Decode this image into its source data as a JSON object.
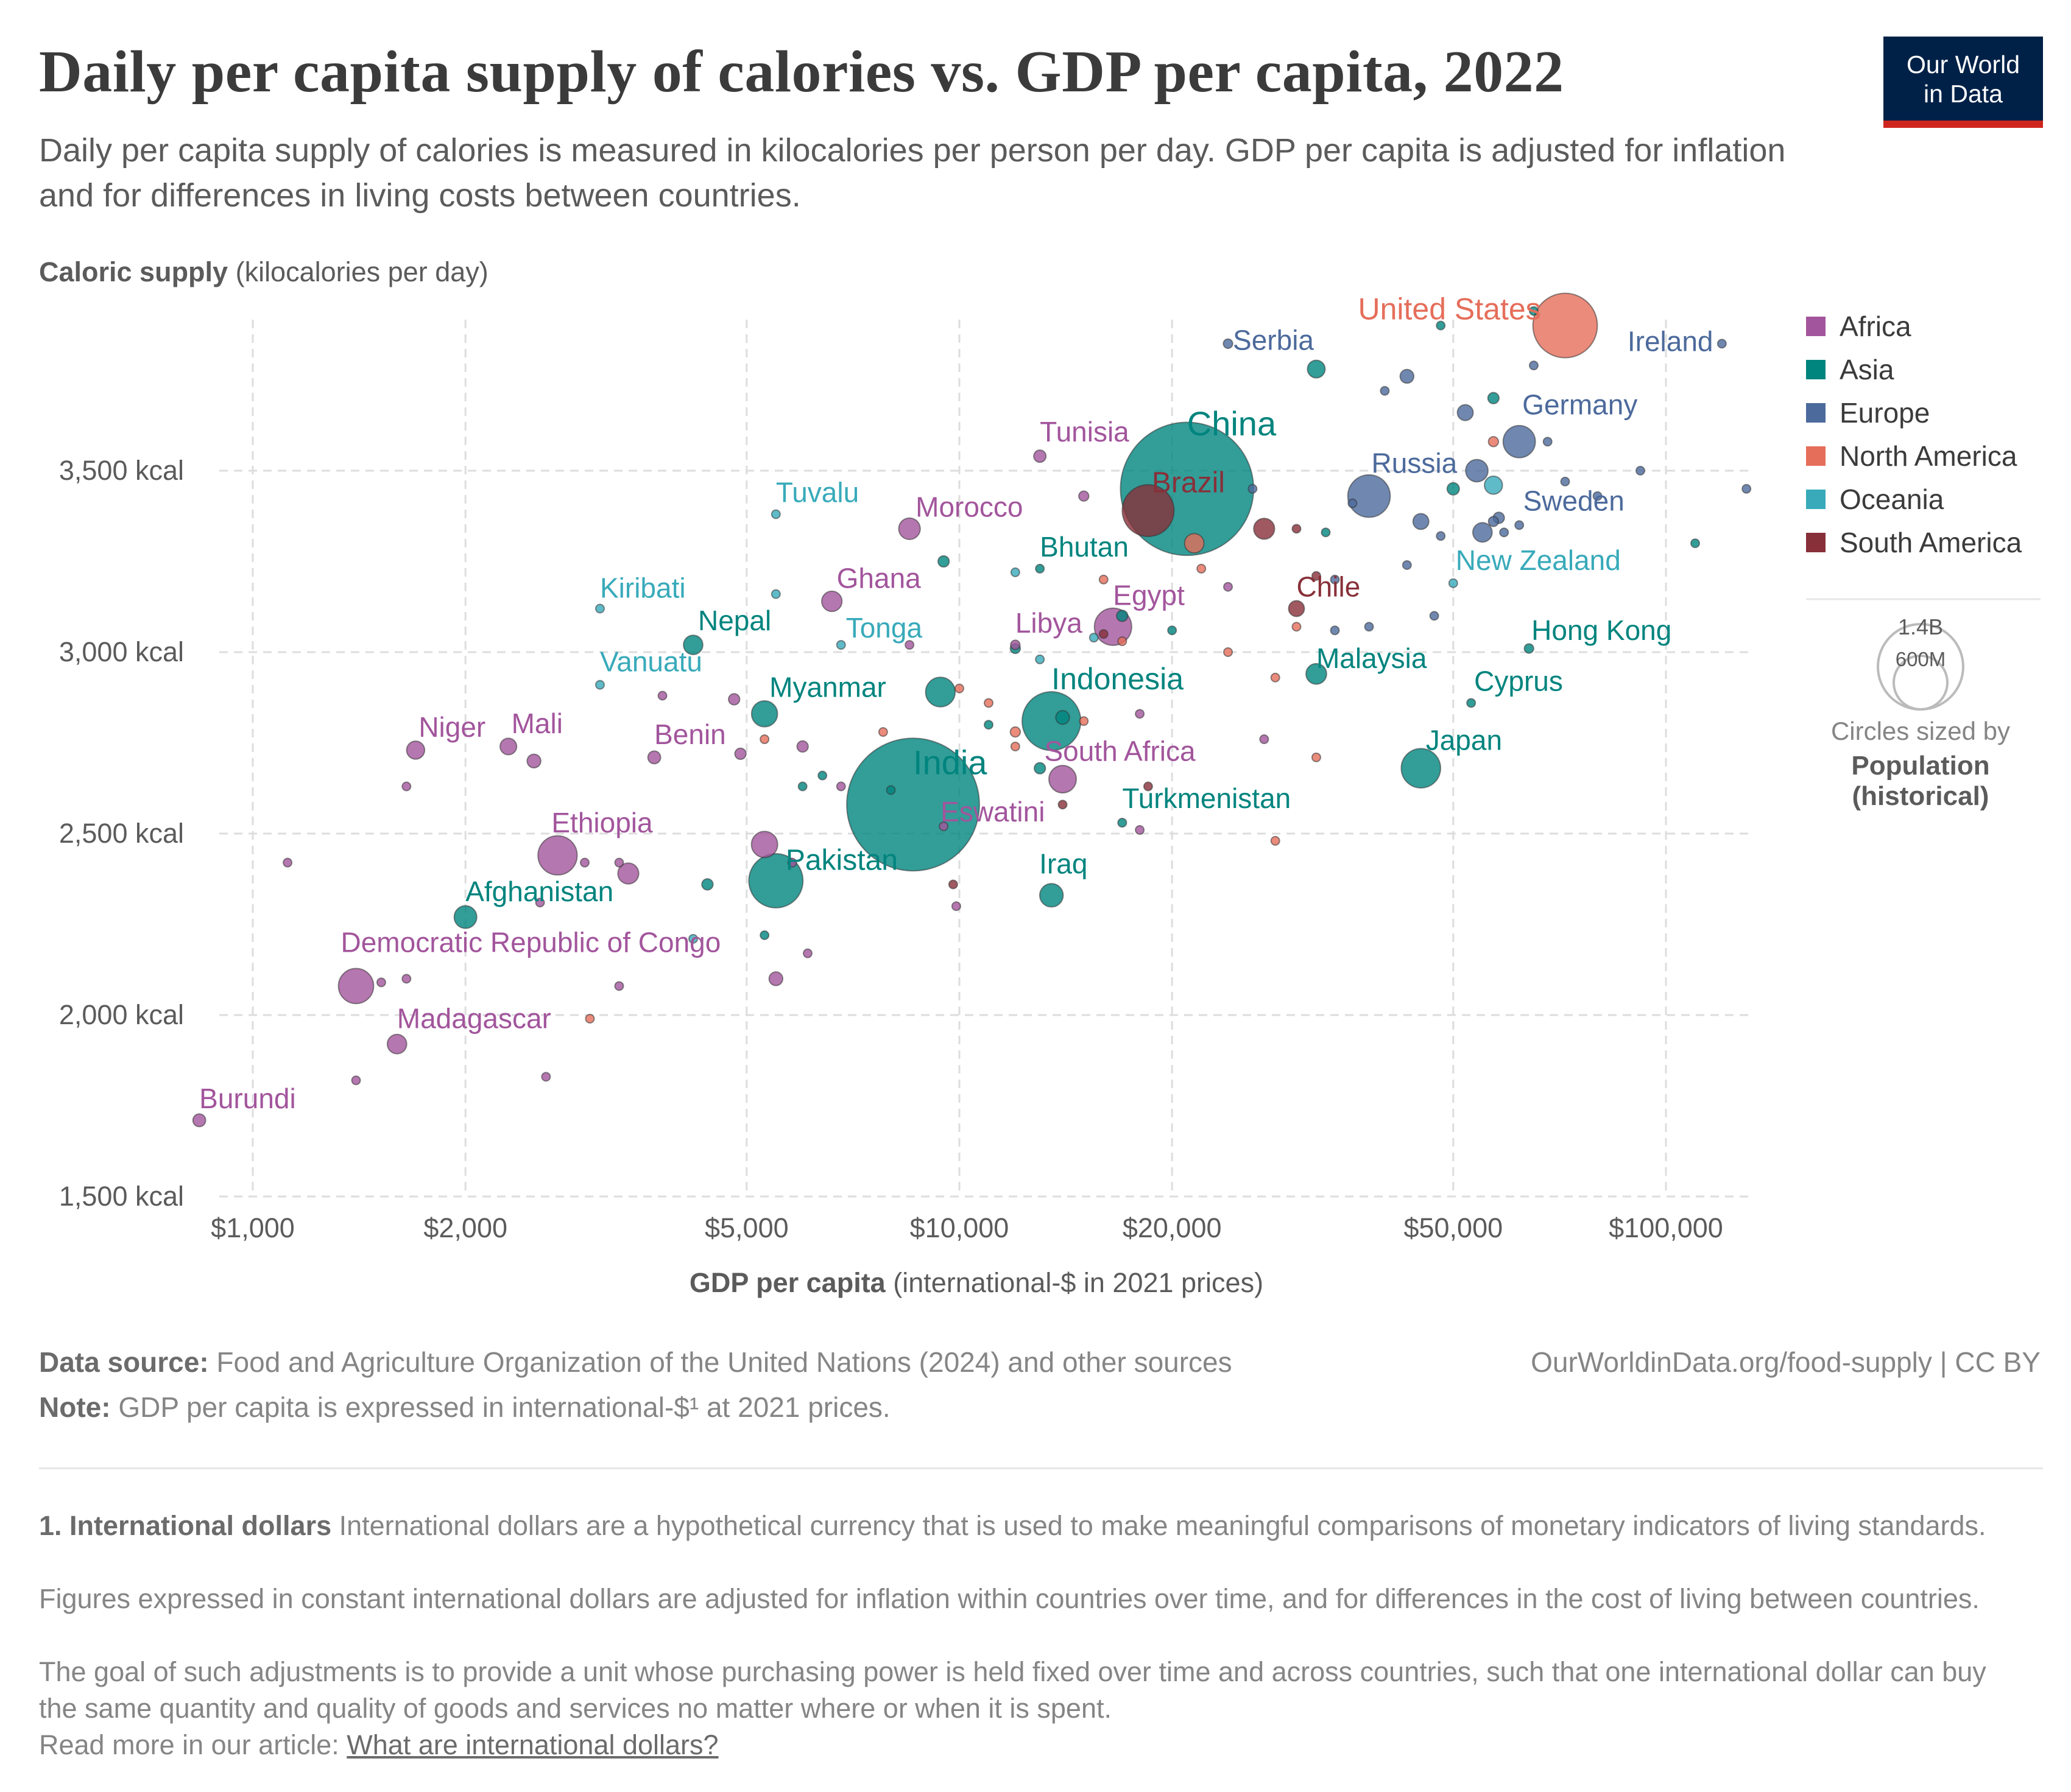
{
  "header": {
    "title": "Daily per capita supply of calories vs. GDP per capita, 2022",
    "subtitle": "Daily per capita supply of calories is measured in kilocalories per person per day. GDP per capita is adjusted for inflation and for differences in living costs between countries.",
    "logo_line1": "Our World",
    "logo_line2": "in Data"
  },
  "colors": {
    "Africa": "#a2559c",
    "Asia": "#00847e",
    "Europe": "#4c6a9c",
    "North America": "#e56e5a",
    "Oceania": "#38aaba",
    "South America": "#883039"
  },
  "chart_data": {
    "type": "scatter",
    "x_scale": "log",
    "xlim": [
      1000,
      130000
    ],
    "ylim": [
      1500,
      3900
    ],
    "y_label_bold": "Caloric supply",
    "y_label_rest": " (kilocalories per day)",
    "x_label_bold": "GDP per capita",
    "x_label_rest": " (international-$ in 2021 prices)",
    "y_ticks": [
      {
        "value": 1500,
        "label": "1,500 kcal"
      },
      {
        "value": 2000,
        "label": "2,000 kcal"
      },
      {
        "value": 2500,
        "label": "2,500 kcal"
      },
      {
        "value": 3000,
        "label": "3,000 kcal"
      },
      {
        "value": 3500,
        "label": "3,500 kcal"
      }
    ],
    "x_ticks": [
      {
        "value": 1000,
        "label": "$1,000"
      },
      {
        "value": 2000,
        "label": "$2,000"
      },
      {
        "value": 5000,
        "label": "$5,000"
      },
      {
        "value": 10000,
        "label": "$10,000"
      },
      {
        "value": 20000,
        "label": "$20,000"
      },
      {
        "value": 50000,
        "label": "$50,000"
      },
      {
        "value": 100000,
        "label": "$100,000"
      }
    ],
    "legend": {
      "entries": [
        "Africa",
        "Asia",
        "Europe",
        "North America",
        "Oceania",
        "South America"
      ],
      "size_values": [
        "1.4B",
        "600M"
      ],
      "size_caption1": "Circles sized by",
      "size_caption2": "Population",
      "size_caption3": "(historical)"
    },
    "labeled_points": [
      {
        "name": "China",
        "continent": "Asia",
        "gdp": 21000,
        "kcal": 3450,
        "pop": 1420
      },
      {
        "name": "India",
        "continent": "Asia",
        "gdp": 8600,
        "kcal": 2580,
        "pop": 1410
      },
      {
        "name": "United States",
        "continent": "North America",
        "gdp": 72000,
        "kcal": 3900,
        "pop": 333
      },
      {
        "name": "Indonesia",
        "continent": "Asia",
        "gdp": 13500,
        "kcal": 2810,
        "pop": 276
      },
      {
        "name": "Pakistan",
        "continent": "Asia",
        "gdp": 5500,
        "kcal": 2370,
        "pop": 235
      },
      {
        "name": "Brazil",
        "continent": "South America",
        "gdp": 18500,
        "kcal": 3390,
        "pop": 215
      },
      {
        "name": "Russia",
        "continent": "Europe",
        "gdp": 38000,
        "kcal": 3430,
        "pop": 144
      },
      {
        "name": "Japan",
        "continent": "Asia",
        "gdp": 45000,
        "kcal": 2680,
        "pop": 124
      },
      {
        "name": "Ethiopia",
        "continent": "Africa",
        "gdp": 2700,
        "kcal": 2440,
        "pop": 123
      },
      {
        "name": "Egypt",
        "continent": "Africa",
        "gdp": 16500,
        "kcal": 3070,
        "pop": 111
      },
      {
        "name": "Democratic Republic of Congo",
        "continent": "Africa",
        "gdp": 1400,
        "kcal": 2080,
        "pop": 99
      },
      {
        "name": "Germany",
        "continent": "Europe",
        "gdp": 62000,
        "kcal": 3580,
        "pop": 83
      },
      {
        "name": "South Africa",
        "continent": "Africa",
        "gdp": 14000,
        "kcal": 2650,
        "pop": 60
      },
      {
        "name": "Myanmar",
        "continent": "Asia",
        "gdp": 5300,
        "kcal": 2830,
        "pop": 54
      },
      {
        "name": "Morocco",
        "continent": "Africa",
        "gdp": 8500,
        "kcal": 3340,
        "pop": 37
      },
      {
        "name": "Iraq",
        "continent": "Asia",
        "gdp": 13500,
        "kcal": 2330,
        "pop": 44
      },
      {
        "name": "Afghanistan",
        "continent": "Asia",
        "gdp": 2000,
        "kcal": 2270,
        "pop": 41
      },
      {
        "name": "Ghana",
        "continent": "Africa",
        "gdp": 6600,
        "kcal": 3140,
        "pop": 33
      },
      {
        "name": "Nepal",
        "continent": "Asia",
        "gdp": 4200,
        "kcal": 3020,
        "pop": 30
      },
      {
        "name": "Madagascar",
        "continent": "Africa",
        "gdp": 1600,
        "kcal": 1920,
        "pop": 30
      },
      {
        "name": "Malaysia",
        "continent": "Asia",
        "gdp": 32000,
        "kcal": 2940,
        "pop": 34
      },
      {
        "name": "Niger",
        "continent": "Africa",
        "gdp": 1700,
        "kcal": 2730,
        "pop": 26
      },
      {
        "name": "Mali",
        "continent": "Africa",
        "gdp": 2300,
        "kcal": 2740,
        "pop": 22
      },
      {
        "name": "Chile",
        "continent": "South America",
        "gdp": 30000,
        "kcal": 3120,
        "pop": 20
      },
      {
        "name": "Benin",
        "continent": "Africa",
        "gdp": 3700,
        "kcal": 2710,
        "pop": 13
      },
      {
        "name": "Tunisia",
        "continent": "Africa",
        "gdp": 13000,
        "kcal": 3540,
        "pop": 12
      },
      {
        "name": "Burundi",
        "continent": "Africa",
        "gdp": 840,
        "kcal": 1710,
        "pop": 13
      },
      {
        "name": "Sweden",
        "continent": "Europe",
        "gdp": 58000,
        "kcal": 3370,
        "pop": 10
      },
      {
        "name": "Serbia",
        "continent": "Europe",
        "gdp": 24000,
        "kcal": 3850,
        "pop": 7
      },
      {
        "name": "Libya",
        "continent": "Africa",
        "gdp": 12000,
        "kcal": 3020,
        "pop": 7
      },
      {
        "name": "Hong Kong",
        "continent": "Asia",
        "gdp": 64000,
        "kcal": 3010,
        "pop": 7
      },
      {
        "name": "Turkmenistan",
        "continent": "Asia",
        "gdp": 17000,
        "kcal": 2530,
        "pop": 6
      },
      {
        "name": "Ireland",
        "continent": "Europe",
        "gdp": 120000,
        "kcal": 3850,
        "pop": 5
      },
      {
        "name": "New Zealand",
        "continent": "Oceania",
        "gdp": 50000,
        "kcal": 3190,
        "pop": 5
      },
      {
        "name": "Bhutan",
        "continent": "Asia",
        "gdp": 13000,
        "kcal": 3230,
        "pop": 0.8
      },
      {
        "name": "Eswatini",
        "continent": "Africa",
        "gdp": 9500,
        "kcal": 2520,
        "pop": 1.2
      },
      {
        "name": "Cyprus",
        "continent": "Asia",
        "gdp": 53000,
        "kcal": 2860,
        "pop": 1.2
      },
      {
        "name": "Tonga",
        "continent": "Oceania",
        "gdp": 6800,
        "kcal": 3020,
        "pop": 0.1
      },
      {
        "name": "Vanuatu",
        "continent": "Oceania",
        "gdp": 3100,
        "kcal": 2910,
        "pop": 0.3
      },
      {
        "name": "Kiribati",
        "continent": "Oceania",
        "gdp": 3100,
        "kcal": 3120,
        "pop": 0.13
      },
      {
        "name": "Tuvalu",
        "continent": "Oceania",
        "gdp": 5500,
        "kcal": 3380,
        "pop": 0.01
      }
    ],
    "other_points": [
      [
        "Africa",
        1120,
        2420,
        5
      ],
      [
        "Africa",
        1650,
        2630,
        5
      ],
      [
        "Africa",
        1520,
        2090,
        5
      ],
      [
        "Africa",
        1400,
        1820,
        5
      ],
      [
        "Africa",
        1650,
        2100,
        5
      ],
      [
        "Africa",
        2500,
        2700,
        15
      ],
      [
        "Africa",
        2550,
        2310,
        5
      ],
      [
        "Africa",
        2600,
        1830,
        5
      ],
      [
        "Africa",
        2950,
        2420,
        5
      ],
      [
        "Africa",
        3300,
        2420,
        5
      ],
      [
        "Africa",
        3300,
        2080,
        5
      ],
      [
        "Africa",
        3400,
        2390,
        35
      ],
      [
        "Africa",
        3800,
        2880,
        5
      ],
      [
        "Africa",
        4800,
        2870,
        10
      ],
      [
        "Africa",
        4900,
        2720,
        10
      ],
      [
        "Africa",
        5300,
        2470,
        55
      ],
      [
        "Africa",
        5500,
        2100,
        15
      ],
      [
        "Africa",
        5800,
        2420,
        5
      ],
      [
        "Africa",
        6000,
        2740,
        10
      ],
      [
        "Africa",
        6100,
        2170,
        5
      ],
      [
        "Africa",
        6800,
        2630,
        5
      ],
      [
        "Africa",
        8500,
        3020,
        5
      ],
      [
        "Africa",
        9900,
        2300,
        5
      ],
      [
        "Africa",
        15000,
        3430,
        8
      ],
      [
        "Africa",
        18000,
        2830,
        5
      ],
      [
        "Africa",
        18000,
        2510,
        5
      ],
      [
        "Africa",
        24000,
        3180,
        5
      ],
      [
        "Africa",
        27000,
        2760,
        5
      ],
      [
        "Asia",
        4400,
        2360,
        10
      ],
      [
        "Asia",
        5300,
        2220,
        5
      ],
      [
        "Asia",
        6000,
        2630,
        5
      ],
      [
        "Asia",
        6400,
        2660,
        5
      ],
      [
        "Asia",
        8000,
        2620,
        5
      ],
      [
        "Asia",
        9400,
        2890,
        70
      ],
      [
        "Asia",
        9500,
        3250,
        10
      ],
      [
        "Asia",
        12000,
        3010,
        8
      ],
      [
        "Asia",
        13000,
        2680,
        10
      ],
      [
        "Asia",
        14000,
        2820,
        15
      ],
      [
        "Asia",
        17000,
        3100,
        10
      ],
      [
        "Asia",
        20000,
        3060,
        5
      ],
      [
        "Asia",
        32000,
        3780,
        25
      ],
      [
        "Asia",
        33000,
        3330,
        5
      ],
      [
        "Asia",
        48000,
        3900,
        5
      ],
      [
        "Asia",
        50000,
        3450,
        12
      ],
      [
        "Asia",
        57000,
        3700,
        10
      ],
      [
        "Asia",
        65000,
        3940,
        5
      ],
      [
        "Asia",
        110000,
        3300,
        5
      ],
      [
        "Asia",
        11000,
        2800,
        5
      ],
      [
        "Europe",
        26000,
        3450,
        5
      ],
      [
        "Europe",
        34000,
        3200,
        5
      ],
      [
        "Europe",
        36000,
        3410,
        5
      ],
      [
        "Europe",
        38000,
        3070,
        5
      ],
      [
        "Europe",
        40000,
        3720,
        5
      ],
      [
        "Europe",
        43000,
        3760,
        15
      ],
      [
        "Europe",
        45000,
        3360,
        20
      ],
      [
        "Europe",
        47000,
        3100,
        5
      ],
      [
        "Europe",
        48000,
        3320,
        5
      ],
      [
        "Europe",
        52000,
        3660,
        20
      ],
      [
        "Europe",
        55000,
        3330,
        30
      ],
      [
        "Europe",
        57000,
        3360,
        8
      ],
      [
        "Europe",
        59000,
        3330,
        5
      ],
      [
        "Europe",
        62000,
        3350,
        5
      ],
      [
        "Europe",
        65000,
        3790,
        5
      ],
      [
        "Europe",
        68000,
        3580,
        5
      ],
      [
        "Europe",
        72000,
        3470,
        5
      ],
      [
        "Europe",
        80000,
        3430,
        5
      ],
      [
        "Europe",
        92000,
        3500,
        5
      ],
      [
        "Europe",
        130000,
        3450,
        5
      ],
      [
        "Europe",
        54000,
        3500,
        40
      ],
      [
        "Europe",
        34000,
        3060,
        5
      ],
      [
        "Europe",
        43000,
        3240,
        5
      ],
      [
        "North America",
        3000,
        1990,
        5
      ],
      [
        "North America",
        5300,
        2760,
        5
      ],
      [
        "North America",
        7800,
        2780,
        5
      ],
      [
        "North America",
        10000,
        2900,
        5
      ],
      [
        "North America",
        11000,
        2860,
        5
      ],
      [
        "North America",
        12000,
        2740,
        5
      ],
      [
        "North America",
        12000,
        2780,
        8
      ],
      [
        "North America",
        15000,
        2810,
        5
      ],
      [
        "North America",
        16000,
        3200,
        5
      ],
      [
        "North America",
        17000,
        3030,
        5
      ],
      [
        "North America",
        22000,
        3230,
        5
      ],
      [
        "North America",
        24000,
        3000,
        5
      ],
      [
        "North America",
        28000,
        2930,
        5
      ],
      [
        "North America",
        28000,
        2480,
        5
      ],
      [
        "North America",
        30000,
        3070,
        5
      ],
      [
        "North America",
        32000,
        2710,
        5
      ],
      [
        "North America",
        21500,
        3300,
        30
      ],
      [
        "North America",
        57000,
        3580,
        8
      ],
      [
        "Oceania",
        4200,
        2210,
        5
      ],
      [
        "Oceania",
        5500,
        3160,
        5
      ],
      [
        "Oceania",
        12000,
        3220,
        5
      ],
      [
        "Oceania",
        13000,
        2980,
        5
      ],
      [
        "Oceania",
        15500,
        3040,
        5
      ],
      [
        "Oceania",
        57000,
        3460,
        26
      ],
      [
        "South America",
        9800,
        2360,
        5
      ],
      [
        "South America",
        14000,
        2580,
        5
      ],
      [
        "South America",
        16000,
        3050,
        5
      ],
      [
        "South America",
        18500,
        2630,
        5
      ],
      [
        "South America",
        27000,
        3340,
        35
      ],
      [
        "South America",
        30000,
        3340,
        5
      ],
      [
        "South America",
        32000,
        3210,
        5
      ]
    ]
  },
  "footer": {
    "source_bold": "Data source:",
    "source_rest": " Food and Agriculture Organization of the United Nations (2024) and other sources",
    "right": "OurWorldinData.org/food-supply | CC BY",
    "note_bold": "Note:",
    "note_rest": " GDP per capita is expressed in international-$¹ at 2021 prices.",
    "fn_bold": "1. International dollars",
    "fn_p1": " International dollars are a hypothetical currency that is used to make meaningful comparisons of monetary indicators of living standards.",
    "fn_p2": "Figures expressed in constant international dollars are adjusted for inflation within countries over time, and for differences in the cost of living between countries.",
    "fn_p3": "The goal of such adjustments is to provide a unit whose purchasing power is held fixed over time and across countries, such that one international dollar can buy the same quantity and quality of goods and services no matter where or when it is spent.",
    "fn_read": "Read more in our article: ",
    "fn_link": "What are international dollars?"
  }
}
